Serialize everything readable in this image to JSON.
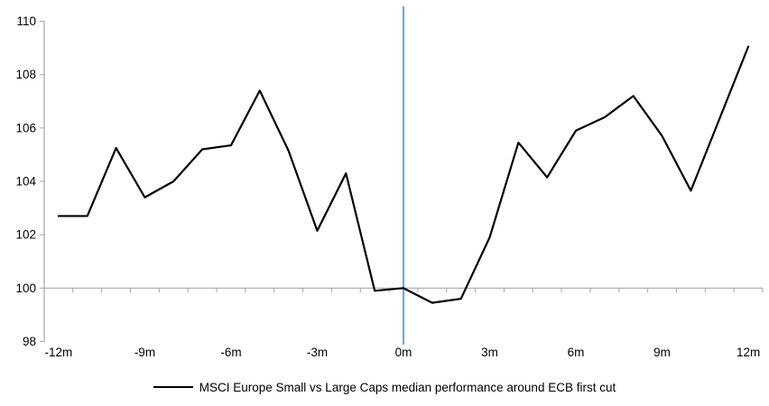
{
  "chart_data": {
    "type": "line",
    "title": "",
    "legend": "MSCI Europe Small vs Large Caps median performance around ECB first cut",
    "legend_position": "bottom-center",
    "x": [
      -12,
      -11,
      -10,
      -9,
      -8,
      -7,
      -6,
      -5,
      -4,
      -3,
      -2,
      -1,
      0,
      1,
      2,
      3,
      4,
      5,
      6,
      7,
      8,
      9,
      10,
      11,
      12
    ],
    "series": [
      {
        "name": "MSCI Europe Small vs Large Caps median performance around ECB first cut",
        "color": "#000000",
        "values": [
          102.7,
          102.7,
          105.25,
          103.4,
          104.0,
          105.2,
          105.35,
          107.4,
          105.15,
          102.15,
          104.3,
          99.9,
          100.0,
          99.45,
          99.6,
          101.9,
          105.45,
          104.15,
          105.9,
          106.4,
          107.2,
          105.7,
          103.65,
          106.35,
          109.05
        ]
      }
    ],
    "ylim": [
      98,
      110
    ],
    "yticks": [
      98,
      100,
      102,
      104,
      106,
      108,
      110
    ],
    "xtick_x": [
      -12,
      -9,
      -6,
      -3,
      0,
      3,
      6,
      9,
      12
    ],
    "xtick_labels": [
      "-12m",
      "-9m",
      "-6m",
      "-3m",
      "0m",
      "3m",
      "6m",
      "9m",
      "12m"
    ],
    "x_axis_position": 100,
    "grid": false,
    "event_line": {
      "x": 0,
      "color": "#7aa7d0"
    },
    "axis_color": "#a6a6a6",
    "text_color": "#000000",
    "background": "#ffffff"
  }
}
